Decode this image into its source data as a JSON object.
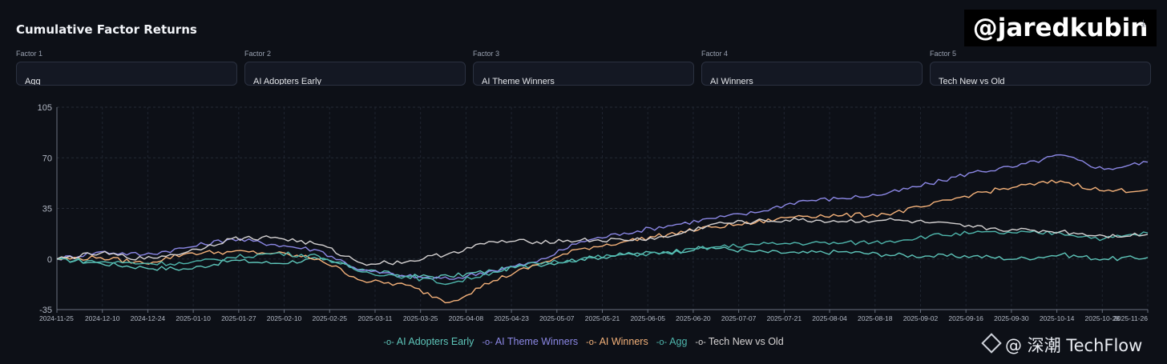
{
  "header": {
    "title": "Cumulative Factor Returns"
  },
  "selectors": [
    {
      "label": "Factor 1",
      "value": "Agg"
    },
    {
      "label": "Factor 2",
      "value": "AI Adopters Early"
    },
    {
      "label": "Factor 3",
      "value": "AI Theme Winners"
    },
    {
      "label": "Factor 4",
      "value": "AI Winners"
    },
    {
      "label": "Factor 5",
      "value": "Tech New vs Old"
    }
  ],
  "watermark": "@jaredkubin",
  "brand": {
    "text": "@ 深潮 TechFlow"
  },
  "chart_data": {
    "type": "line",
    "title": "Cumulative Factor Returns",
    "ylim": [
      -35,
      105
    ],
    "yticks": [
      "105",
      "70",
      "35",
      "0",
      "-35"
    ],
    "ytick_values": [
      105,
      70,
      35,
      0,
      -35
    ],
    "xticks": [
      "2024-11-25",
      "2024-12-10",
      "2024-12-24",
      "2025-01-10",
      "2025-01-27",
      "2025-02-10",
      "2025-02-25",
      "2025-03-11",
      "2025-03-25",
      "2025-04-08",
      "2025-04-23",
      "2025-05-07",
      "2025-05-21",
      "2025-06-05",
      "2025-06-20",
      "2025-07-07",
      "2025-07-21",
      "2025-08-04",
      "2025-08-18",
      "2025-09-02",
      "2025-09-16",
      "2025-09-30",
      "2025-10-14",
      "2025-10-28",
      "2025-11-26"
    ],
    "x": [
      "2024-11-25",
      "2024-12-10",
      "2024-12-24",
      "2025-01-10",
      "2025-01-27",
      "2025-02-10",
      "2025-02-25",
      "2025-03-11",
      "2025-03-25",
      "2025-04-08",
      "2025-04-23",
      "2025-05-07",
      "2025-05-21",
      "2025-06-05",
      "2025-06-20",
      "2025-07-07",
      "2025-07-21",
      "2025-08-04",
      "2025-08-18",
      "2025-09-02",
      "2025-09-16",
      "2025-09-30",
      "2025-10-14",
      "2025-10-28",
      "2025-11-12",
      "2025-11-26"
    ],
    "grid": true,
    "legend": "bottom",
    "series": [
      {
        "name": "AI Adopters Early",
        "color": "#5ec6ba",
        "values": [
          0,
          -3,
          -6,
          -7,
          -1,
          -3,
          0,
          -7,
          -12,
          -12,
          -8,
          -4,
          0,
          3,
          5,
          8,
          5,
          4,
          5,
          3,
          2,
          2,
          0,
          3,
          0,
          1
        ]
      },
      {
        "name": "AI Theme Winners",
        "color": "#8c88e6",
        "values": [
          0,
          5,
          3,
          8,
          14,
          10,
          6,
          -8,
          -12,
          -14,
          -8,
          -2,
          12,
          18,
          23,
          28,
          32,
          40,
          42,
          45,
          52,
          60,
          64,
          72,
          62,
          67
        ]
      },
      {
        "name": "AI Winners",
        "color": "#f5b27a",
        "values": [
          0,
          1,
          -3,
          4,
          5,
          4,
          0,
          -15,
          -18,
          -30,
          -15,
          -4,
          7,
          12,
          17,
          22,
          25,
          30,
          30,
          31,
          37,
          45,
          50,
          54,
          47,
          48
        ]
      },
      {
        "name": "Agg",
        "color": "#4fb7ad",
        "values": [
          0,
          -2,
          -3,
          -3,
          1,
          4,
          2,
          -9,
          -12,
          -17,
          -9,
          -3,
          0,
          3,
          4,
          8,
          10,
          11,
          11,
          12,
          16,
          18,
          18,
          18,
          14,
          18
        ]
      },
      {
        "name": "Tech New vs Old",
        "color": "#d6d3d3",
        "values": [
          0,
          4,
          0,
          5,
          14,
          15,
          10,
          -3,
          -2,
          4,
          12,
          12,
          13,
          13,
          15,
          24,
          26,
          27,
          26,
          27,
          25,
          22,
          20,
          19,
          16,
          17
        ]
      }
    ]
  }
}
